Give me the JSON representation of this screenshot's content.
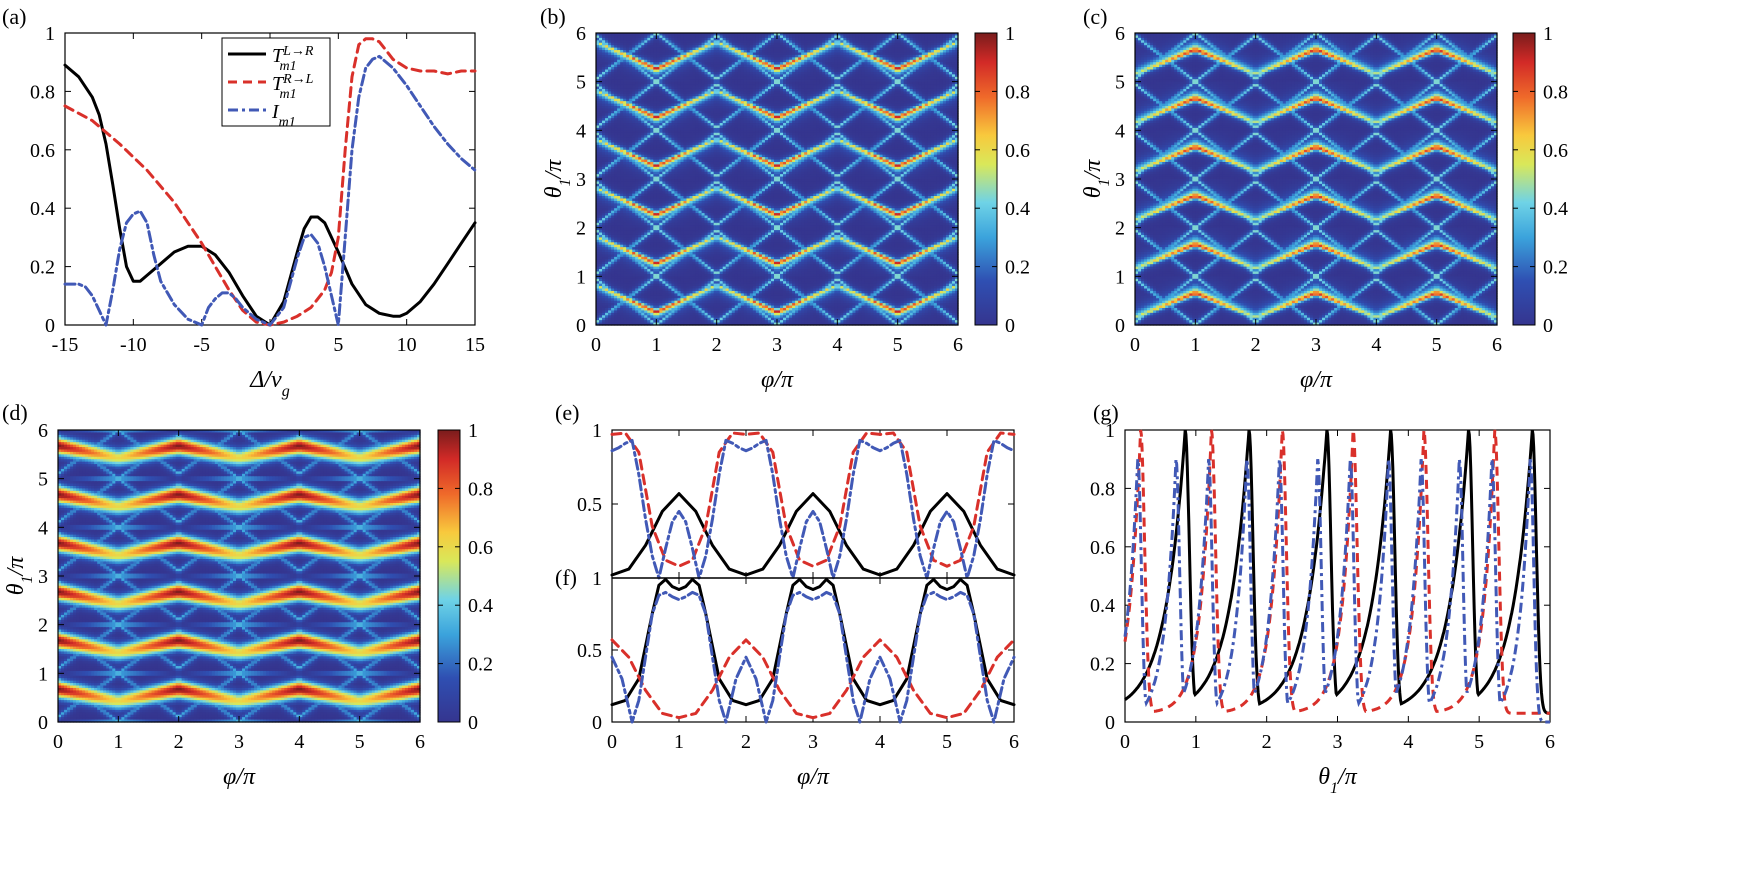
{
  "figure": {
    "colorbar_ticks": [
      "0",
      "0.2",
      "0.4",
      "0.6",
      "0.8",
      "1"
    ]
  },
  "chart_data": [
    {
      "id": "a",
      "panel_label": "(a)",
      "type": "line",
      "xlabel": "Δ/v_g",
      "xlabel_main": "Δ/v",
      "xlabel_sub": "g",
      "ylabel": "",
      "xlim": [
        -15,
        15
      ],
      "ylim": [
        0,
        1
      ],
      "xticks": [
        -15,
        -10,
        -5,
        0,
        5,
        10,
        15
      ],
      "xtick_labels": [
        "-15",
        "-10",
        "-5",
        "0",
        "5",
        "10",
        "15"
      ],
      "yticks": [
        0,
        0.2,
        0.4,
        0.6,
        0.8,
        1
      ],
      "ytick_labels": [
        "0",
        "0.2",
        "0.4",
        "0.6",
        "0.8",
        "1"
      ],
      "legend": [
        {
          "main": "T",
          "sup": "L→R",
          "sub": "m1"
        },
        {
          "main": "T",
          "sup": "R→L",
          "sub": "m1"
        },
        {
          "main": "I",
          "sup": "",
          "sub": "m1"
        }
      ],
      "series": [
        {
          "name": "T_m1^{L→R}",
          "style": "solid",
          "x": [
            -15,
            -14,
            -13,
            -12.5,
            -12,
            -11.5,
            -11,
            -10.5,
            -10,
            -9.5,
            -9,
            -8,
            -7,
            -6,
            -5,
            -4,
            -3,
            -2,
            -1,
            0,
            1,
            2,
            2.5,
            3,
            3.5,
            4,
            5,
            6,
            7,
            8,
            9,
            9.5,
            10,
            11,
            12,
            13,
            14,
            15
          ],
          "y": [
            0.89,
            0.85,
            0.78,
            0.72,
            0.62,
            0.48,
            0.33,
            0.2,
            0.15,
            0.15,
            0.17,
            0.21,
            0.25,
            0.27,
            0.27,
            0.24,
            0.18,
            0.1,
            0.03,
            0.0,
            0.08,
            0.25,
            0.33,
            0.37,
            0.37,
            0.35,
            0.25,
            0.14,
            0.07,
            0.04,
            0.03,
            0.03,
            0.04,
            0.08,
            0.14,
            0.21,
            0.28,
            0.35
          ]
        },
        {
          "name": "T_m1^{R→L}",
          "style": "dashed",
          "x": [
            -15,
            -13,
            -11,
            -9,
            -7,
            -5,
            -4,
            -3,
            -2,
            -1,
            0,
            1,
            2,
            3,
            4,
            4.5,
            5,
            5.5,
            6,
            6.5,
            7,
            7.5,
            8,
            8.5,
            9,
            10,
            11,
            12,
            13,
            14,
            15
          ],
          "y": [
            0.75,
            0.7,
            0.62,
            0.53,
            0.42,
            0.28,
            0.2,
            0.12,
            0.05,
            0.01,
            0.0,
            0.01,
            0.03,
            0.06,
            0.12,
            0.18,
            0.3,
            0.6,
            0.85,
            0.96,
            0.98,
            0.98,
            0.97,
            0.94,
            0.91,
            0.88,
            0.87,
            0.87,
            0.86,
            0.87,
            0.87
          ]
        },
        {
          "name": "I_m1",
          "style": "dashdot",
          "x": [
            -15,
            -14,
            -13.5,
            -13,
            -12.5,
            -12,
            -11.5,
            -11,
            -10.5,
            -10,
            -9.5,
            -9,
            -8.5,
            -8,
            -7,
            -6,
            -5,
            -4.5,
            -4,
            -3.5,
            -3,
            -2.5,
            -2,
            -1,
            0,
            1,
            2,
            2.5,
            3,
            3.5,
            4,
            4.5,
            5,
            5.5,
            6,
            6.5,
            7,
            7.5,
            8,
            9,
            10,
            11,
            12,
            13,
            14,
            15
          ],
          "y": [
            0.14,
            0.14,
            0.13,
            0.1,
            0.05,
            0.0,
            0.12,
            0.26,
            0.35,
            0.38,
            0.39,
            0.35,
            0.24,
            0.15,
            0.07,
            0.02,
            0.0,
            0.06,
            0.09,
            0.11,
            0.11,
            0.09,
            0.06,
            0.02,
            0.0,
            0.06,
            0.23,
            0.3,
            0.31,
            0.28,
            0.2,
            0.1,
            0.0,
            0.3,
            0.6,
            0.78,
            0.88,
            0.91,
            0.92,
            0.88,
            0.82,
            0.75,
            0.68,
            0.62,
            0.57,
            0.53
          ]
        }
      ]
    },
    {
      "id": "b",
      "panel_label": "(b)",
      "type": "heatmap",
      "xlabel": "φ/π",
      "ylabel": "θ1/π",
      "xlabel_main": "φ/π",
      "ylabel_main": "θ",
      "ylabel_sub": "1",
      "ylabel_tail": "/π",
      "xlim": [
        0,
        6
      ],
      "ylim": [
        0,
        6
      ],
      "xticks": [
        0,
        1,
        2,
        3,
        4,
        5,
        6
      ],
      "xtick_labels": [
        "0",
        "1",
        "2",
        "3",
        "4",
        "5",
        "6"
      ],
      "yticks": [
        0,
        1,
        2,
        3,
        4,
        5,
        6
      ],
      "ytick_labels": [
        "0",
        "1",
        "2",
        "3",
        "4",
        "5",
        "6"
      ],
      "colorbar": {
        "range": [
          0,
          1
        ]
      },
      "pattern": "down"
    },
    {
      "id": "c",
      "panel_label": "(c)",
      "type": "heatmap",
      "xlabel": "φ/π",
      "ylabel": "θ1/π",
      "xlabel_main": "φ/π",
      "ylabel_main": "θ",
      "ylabel_sub": "1",
      "ylabel_tail": "/π",
      "xlim": [
        0,
        6
      ],
      "ylim": [
        0,
        6
      ],
      "xticks": [
        0,
        1,
        2,
        3,
        4,
        5,
        6
      ],
      "xtick_labels": [
        "0",
        "1",
        "2",
        "3",
        "4",
        "5",
        "6"
      ],
      "yticks": [
        0,
        1,
        2,
        3,
        4,
        5,
        6
      ],
      "ytick_labels": [
        "0",
        "1",
        "2",
        "3",
        "4",
        "5",
        "6"
      ],
      "colorbar": {
        "range": [
          0,
          1
        ]
      },
      "pattern": "up"
    },
    {
      "id": "d",
      "panel_label": "(d)",
      "type": "heatmap",
      "xlabel": "φ/π",
      "ylabel": "θ1/π",
      "xlabel_main": "φ/π",
      "ylabel_main": "θ",
      "ylabel_sub": "1",
      "ylabel_tail": "/π",
      "xlim": [
        0,
        6
      ],
      "ylim": [
        0,
        6
      ],
      "xticks": [
        0,
        1,
        2,
        3,
        4,
        5,
        6
      ],
      "xtick_labels": [
        "0",
        "1",
        "2",
        "3",
        "4",
        "5",
        "6"
      ],
      "yticks": [
        0,
        1,
        2,
        3,
        4,
        5,
        6
      ],
      "ytick_labels": [
        "0",
        "1",
        "2",
        "3",
        "4",
        "5",
        "6"
      ],
      "colorbar": {
        "range": [
          0,
          1
        ]
      },
      "pattern": "band"
    },
    {
      "id": "e",
      "panel_label": "(e)",
      "type": "line",
      "xlabel": "",
      "ylabel": "",
      "xlim": [
        0,
        6
      ],
      "ylim": [
        0,
        1
      ],
      "xticks": [
        0,
        1,
        2,
        3,
        4,
        5,
        6
      ],
      "xtick_labels": [],
      "yticks": [
        0.5,
        1
      ],
      "ytick_labels": [
        "0.5",
        "1"
      ],
      "series": [
        {
          "name": "T_m1^{L→R}",
          "style": "solid",
          "shape": "peak",
          "x": [
            0,
            0.25,
            0.5,
            0.75,
            1,
            1.25,
            1.5,
            1.75,
            2
          ],
          "y": [
            0.02,
            0.06,
            0.22,
            0.45,
            0.57,
            0.45,
            0.22,
            0.06,
            0.02
          ],
          "period": 2
        },
        {
          "name": "T_m1^{R→L}",
          "style": "dashed",
          "x": [
            0,
            0.2,
            0.4,
            0.6,
            0.8,
            1,
            1.2,
            1.4,
            1.6,
            1.8,
            2
          ],
          "y": [
            0.97,
            0.98,
            0.85,
            0.35,
            0.12,
            0.08,
            0.12,
            0.35,
            0.85,
            0.98,
            0.97
          ],
          "period": 2,
          "phase": 1
        },
        {
          "name": "I_m1",
          "style": "dashdot",
          "x": [
            0,
            0.1,
            0.2,
            0.3,
            0.4,
            0.5,
            0.6,
            0.7,
            0.8,
            0.9,
            1,
            1.1,
            1.2,
            1.3,
            1.4,
            1.5,
            1.6,
            1.7,
            1.8,
            1.9,
            2
          ],
          "y": [
            0.86,
            0.88,
            0.91,
            0.93,
            0.7,
            0.4,
            0.15,
            0.0,
            0.2,
            0.38,
            0.45,
            0.38,
            0.2,
            0.0,
            0.15,
            0.4,
            0.7,
            0.93,
            0.91,
            0.88,
            0.86
          ],
          "period": 2,
          "phase": 1
        }
      ]
    },
    {
      "id": "f",
      "panel_label": "(f)",
      "type": "line",
      "xlabel": "φ/π",
      "ylabel": "",
      "xlim": [
        0,
        6
      ],
      "ylim": [
        0,
        1
      ],
      "xticks": [
        0,
        1,
        2,
        3,
        4,
        5,
        6
      ],
      "xtick_labels": [
        "0",
        "1",
        "2",
        "3",
        "4",
        "5",
        "6"
      ],
      "yticks": [
        0,
        0.5,
        1
      ],
      "ytick_labels": [
        "0",
        "0.5",
        "1"
      ],
      "series": [
        {
          "name": "T_m1^{L→R}",
          "style": "solid",
          "x": [
            0,
            0.2,
            0.4,
            0.6,
            0.7,
            0.8,
            0.9,
            1,
            1.1,
            1.2,
            1.3,
            1.4,
            1.6,
            1.8,
            2
          ],
          "y": [
            0.12,
            0.15,
            0.3,
            0.75,
            0.95,
            0.99,
            0.94,
            0.92,
            0.94,
            0.99,
            0.95,
            0.75,
            0.3,
            0.15,
            0.12
          ],
          "period": 2
        },
        {
          "name": "T_m1^{R→L}",
          "style": "dashed",
          "x": [
            0,
            0.25,
            0.5,
            0.75,
            1,
            1.25,
            1.5,
            1.75,
            2
          ],
          "y": [
            0.57,
            0.45,
            0.22,
            0.06,
            0.03,
            0.06,
            0.22,
            0.45,
            0.57
          ],
          "period": 2,
          "phase": 1
        },
        {
          "name": "I_m1",
          "style": "dashdot",
          "x": [
            0,
            0.15,
            0.3,
            0.4,
            0.5,
            0.6,
            0.7,
            0.8,
            0.9,
            1,
            1.1,
            1.2,
            1.3,
            1.4,
            1.5,
            1.6,
            1.7,
            1.85,
            2
          ],
          "y": [
            0.45,
            0.3,
            0.0,
            0.15,
            0.45,
            0.75,
            0.88,
            0.9,
            0.87,
            0.85,
            0.87,
            0.9,
            0.88,
            0.75,
            0.45,
            0.15,
            0.0,
            0.3,
            0.45
          ],
          "period": 2,
          "phase": 1
        }
      ]
    },
    {
      "id": "g",
      "panel_label": "(g)",
      "type": "line",
      "xlabel": "θ1/π",
      "xlabel_main": "θ",
      "xlabel_sub": "1",
      "xlabel_tail": "/π",
      "ylabel": "",
      "xlim": [
        0,
        6
      ],
      "ylim": [
        0,
        1
      ],
      "xticks": [
        0,
        1,
        2,
        3,
        4,
        5,
        6
      ],
      "xtick_labels": [
        "0",
        "1",
        "2",
        "3",
        "4",
        "5",
        "6"
      ],
      "yticks": [
        0,
        0.2,
        0.4,
        0.6,
        0.8,
        1
      ],
      "ytick_labels": [
        "0",
        "0.2",
        "0.4",
        "0.6",
        "0.8",
        "1"
      ],
      "series": [
        {
          "name": "T_m1^{L→R}",
          "style": "solid",
          "peaks": [
            0.85,
            1.75,
            2.85,
            3.75,
            4.85,
            5.75
          ],
          "peak_value": 1.0,
          "floor": 0.03
        },
        {
          "name": "T_m1^{R→L}",
          "style": "dashed",
          "peaks": [
            0.22,
            1.22,
            2.22,
            3.22,
            4.22,
            5.22
          ],
          "peak_value": 1.0,
          "floor": 0.03
        },
        {
          "name": "I_m1",
          "style": "dashdot",
          "peaks": [
            0.18,
            0.72,
            1.18,
            1.72,
            2.18,
            2.72,
            3.18,
            3.72,
            4.18,
            4.72,
            5.18,
            5.72
          ],
          "peak_value": 0.9,
          "floor": 0.0
        }
      ]
    }
  ]
}
